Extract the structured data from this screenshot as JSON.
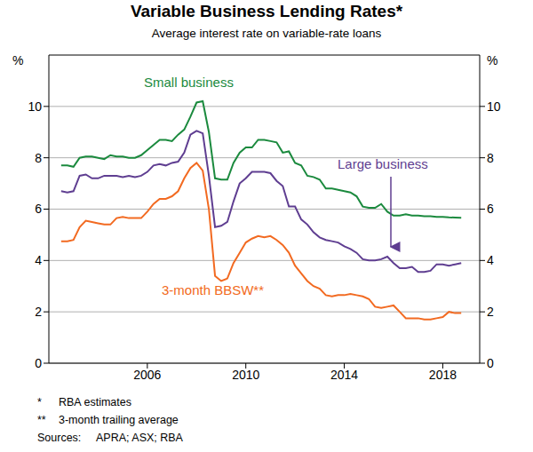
{
  "chart_data": {
    "type": "line",
    "title": "Variable Business Lending Rates*",
    "subtitle": "Average interest rate on variable-rate loans",
    "ylabel": "%",
    "x": [
      2002.5,
      2002.75,
      2003,
      2003.25,
      2003.5,
      2003.75,
      2004,
      2004.25,
      2004.5,
      2004.75,
      2005,
      2005.25,
      2005.5,
      2005.75,
      2006,
      2006.25,
      2006.5,
      2006.75,
      2007,
      2007.25,
      2007.5,
      2007.75,
      2008,
      2008.25,
      2008.5,
      2008.75,
      2009,
      2009.25,
      2009.5,
      2009.75,
      2010,
      2010.25,
      2010.5,
      2010.75,
      2011,
      2011.25,
      2011.5,
      2011.75,
      2012,
      2012.25,
      2012.5,
      2012.75,
      2013,
      2013.25,
      2013.5,
      2013.75,
      2014,
      2014.25,
      2014.5,
      2014.75,
      2015,
      2015.25,
      2015.5,
      2015.75,
      2016,
      2016.25,
      2016.5,
      2016.75,
      2017,
      2017.25,
      2017.5,
      2017.75,
      2018,
      2018.25,
      2018.5,
      2018.75
    ],
    "series": [
      {
        "name": "Small business",
        "color": "#1b8a3e",
        "values": [
          7.7,
          7.7,
          7.65,
          8.0,
          8.05,
          8.05,
          8.0,
          7.95,
          8.1,
          8.05,
          8.05,
          8.0,
          8.0,
          8.1,
          8.3,
          8.5,
          8.7,
          8.7,
          8.65,
          8.9,
          9.1,
          9.6,
          10.15,
          10.2,
          9.0,
          7.2,
          7.15,
          7.15,
          7.8,
          8.2,
          8.4,
          8.4,
          8.7,
          8.7,
          8.65,
          8.6,
          8.2,
          8.25,
          7.8,
          7.7,
          7.3,
          7.25,
          7.15,
          6.8,
          6.8,
          6.75,
          6.7,
          6.65,
          6.5,
          6.1,
          6.05,
          6.05,
          6.2,
          5.9,
          5.75,
          5.75,
          5.8,
          5.75,
          5.75,
          5.72,
          5.72,
          5.7,
          5.7,
          5.68,
          5.67,
          5.66
        ]
      },
      {
        "name": "Large business",
        "color": "#5f3e91",
        "values": [
          6.7,
          6.65,
          6.7,
          7.3,
          7.35,
          7.2,
          7.2,
          7.3,
          7.3,
          7.3,
          7.25,
          7.3,
          7.25,
          7.3,
          7.45,
          7.7,
          7.75,
          7.7,
          7.8,
          7.85,
          8.2,
          8.9,
          9.05,
          8.95,
          7.3,
          5.3,
          5.35,
          5.5,
          6.3,
          7.0,
          7.2,
          7.45,
          7.45,
          7.45,
          7.4,
          7.1,
          6.9,
          6.1,
          6.1,
          5.6,
          5.4,
          5.1,
          4.9,
          4.8,
          4.75,
          4.7,
          4.55,
          4.45,
          4.3,
          4.05,
          4.0,
          4.0,
          4.05,
          4.15,
          3.9,
          3.7,
          3.7,
          3.75,
          3.55,
          3.55,
          3.6,
          3.85,
          3.85,
          3.8,
          3.85,
          3.9
        ]
      },
      {
        "name": "3-month BBSW**",
        "color": "#f26a21",
        "values": [
          4.75,
          4.75,
          4.8,
          5.3,
          5.55,
          5.5,
          5.45,
          5.4,
          5.4,
          5.65,
          5.7,
          5.65,
          5.65,
          5.65,
          5.9,
          6.2,
          6.4,
          6.4,
          6.5,
          6.7,
          7.2,
          7.6,
          7.8,
          7.5,
          6.0,
          3.4,
          3.2,
          3.3,
          3.9,
          4.3,
          4.7,
          4.85,
          4.95,
          4.9,
          4.95,
          4.8,
          4.6,
          4.3,
          3.8,
          3.5,
          3.2,
          3.0,
          2.9,
          2.65,
          2.6,
          2.65,
          2.65,
          2.7,
          2.65,
          2.6,
          2.5,
          2.2,
          2.15,
          2.2,
          2.25,
          2.0,
          1.75,
          1.75,
          1.75,
          1.7,
          1.7,
          1.75,
          1.8,
          2.0,
          1.95,
          1.95
        ]
      }
    ],
    "xlim": [
      2002,
      2019.5
    ],
    "xticks": [
      2006,
      2010,
      2014,
      2018
    ],
    "ylim": [
      0,
      12
    ],
    "yticks": [
      0,
      2,
      4,
      6,
      8,
      10
    ],
    "grid": true,
    "footnotes": [
      {
        "mark": "*",
        "text": "RBA estimates"
      },
      {
        "mark": "**",
        "text": "3-month trailing average"
      }
    ],
    "sources": {
      "label": "Sources:",
      "text": "APRA; ASX; RBA"
    }
  }
}
